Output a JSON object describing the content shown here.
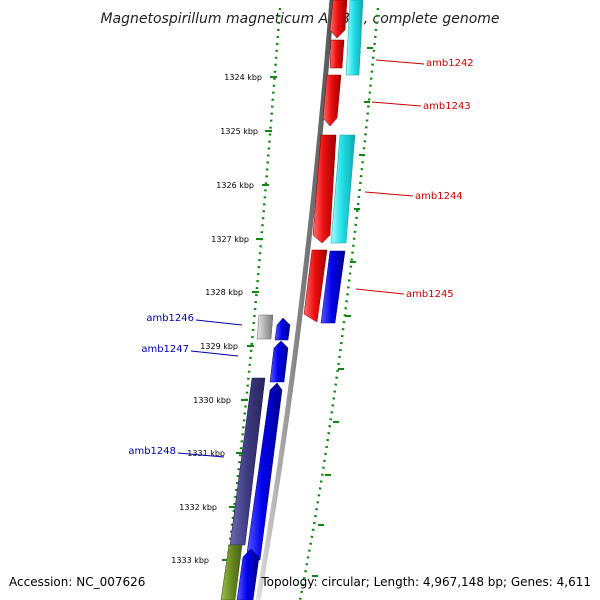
{
  "title": "Magnetospirillum magneticum AMB-1, complete genome",
  "ticks": [
    "1324 kbp",
    "1325 kbp",
    "1326 kbp",
    "1327 kbp",
    "1328 kbp",
    "1329 kbp",
    "1330 kbp",
    "1331 kbp",
    "1332 kbp",
    "1333 kbp"
  ],
  "genes_right": [
    "amb1242",
    "amb1243",
    "amb1244",
    "amb1245"
  ],
  "genes_left": [
    "amb1246",
    "amb1247",
    "amb1248"
  ],
  "footer": {
    "accession": "Accession: NC_007626",
    "topology": "Topology: circular; Length: 4,967,148 bp; Genes: 4,611"
  },
  "colors": {
    "red": "#ee1111",
    "cyan": "#22e0e8",
    "blue": "#0000ee",
    "slate": "#3d3a80",
    "olive": "#6a8a22",
    "gray": "#999999",
    "dots": "#118811",
    "label_red": "#cc0000",
    "label_blue": "#0000aa"
  }
}
